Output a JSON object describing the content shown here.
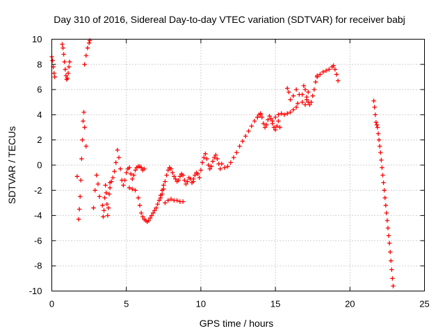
{
  "chart_data": {
    "type": "scatter",
    "title": "Day 310 of 2016, Sidereal Day-to-day VTEC variation (SDTVAR) for receiver babj",
    "xlabel": "GPS time / hours",
    "ylabel": "SDTVAR / TECUs",
    "xlim": [
      0,
      25
    ],
    "ylim": [
      -10,
      10
    ],
    "xticks": [
      0,
      5,
      10,
      15,
      20,
      25
    ],
    "yticks": [
      -10,
      -8,
      -6,
      -4,
      -2,
      0,
      2,
      4,
      6,
      8,
      10
    ],
    "grid": true,
    "marker": "+",
    "color": "#ff0000",
    "series": [
      {
        "name": "seg1",
        "x": [
          0.0,
          0.05,
          0.1,
          0.15,
          0.2
        ],
        "y": [
          8.6,
          8.3,
          7.8,
          7.3,
          7.0
        ]
      },
      {
        "name": "seg2",
        "x": [
          0.7,
          0.75,
          0.8,
          0.85,
          0.9,
          0.95,
          1.0,
          1.05,
          1.1,
          1.15,
          1.2
        ],
        "y": [
          9.6,
          9.3,
          8.8,
          8.2,
          7.6,
          7.1,
          6.8,
          6.9,
          7.3,
          7.8,
          8.2
        ]
      },
      {
        "name": "seg3",
        "x": [
          1.7,
          1.8,
          1.85,
          1.9,
          1.95,
          2.0,
          2.05,
          2.1,
          2.15,
          2.2,
          2.3
        ],
        "y": [
          -0.9,
          -4.3,
          -3.5,
          -2.5,
          -1.2,
          0.5,
          2.0,
          3.5,
          4.2,
          3.0,
          1.5
        ]
      },
      {
        "name": "seg4",
        "x": [
          2.2,
          2.3,
          2.4,
          2.5,
          2.55
        ],
        "y": [
          8.0,
          8.7,
          9.3,
          9.7,
          9.9
        ]
      },
      {
        "name": "seg5",
        "x": [
          2.8,
          2.9,
          3.0,
          3.1,
          3.2
        ],
        "y": [
          -3.4,
          -2.0,
          -0.8,
          -1.5,
          -2.5
        ]
      },
      {
        "name": "seg6",
        "x": [
          3.4,
          3.45,
          3.5,
          3.55,
          3.6,
          3.65,
          3.7,
          3.75,
          3.8,
          3.85,
          3.9
        ],
        "y": [
          -3.2,
          -4.1,
          -3.6,
          -2.6,
          -1.6,
          -2.2,
          -3.1,
          -4.0,
          -3.4,
          -2.3,
          -1.4
        ]
      },
      {
        "name": "seg7",
        "x": [
          3.9,
          4.0,
          4.1,
          4.2,
          4.3,
          4.4,
          4.5,
          4.6,
          4.7,
          4.8,
          4.9,
          5.0,
          5.1,
          5.2,
          5.3,
          5.4,
          5.5,
          5.6,
          5.7,
          5.8,
          5.9,
          6.0,
          6.1,
          6.2
        ],
        "y": [
          -1.8,
          -1.3,
          -1.0,
          -0.5,
          0.2,
          1.2,
          0.6,
          -0.3,
          -1.2,
          -1.6,
          -1.2,
          -0.6,
          -0.3,
          -0.2,
          -0.7,
          -1.1,
          -0.8,
          -0.4,
          -0.2,
          -0.1,
          -0.1,
          -0.2,
          -0.4,
          -0.3
        ]
      },
      {
        "name": "seg8",
        "x": [
          5.2,
          5.4,
          5.6,
          5.8,
          5.9,
          6.0,
          6.1,
          6.2,
          6.3,
          6.4,
          6.5,
          6.6,
          6.7,
          6.8,
          6.9,
          7.0,
          7.1,
          7.2,
          7.3,
          7.4,
          7.5
        ],
        "y": [
          -1.8,
          -1.9,
          -2.0,
          -2.6,
          -3.2,
          -3.8,
          -4.1,
          -4.3,
          -4.4,
          -4.5,
          -4.4,
          -4.2,
          -4.0,
          -3.8,
          -3.6,
          -3.4,
          -3.1,
          -2.8,
          -2.4,
          -2.0,
          -1.6
        ]
      },
      {
        "name": "seg9",
        "x": [
          7.3,
          7.4,
          7.5,
          7.6,
          7.7,
          7.8,
          7.9,
          8.0,
          8.1,
          8.2,
          8.3,
          8.4,
          8.5,
          8.6,
          8.7,
          8.8,
          8.9,
          9.0,
          9.1,
          9.2,
          9.3,
          9.4,
          9.5
        ],
        "y": [
          -2.6,
          -2.3,
          -1.9,
          -1.3,
          -0.8,
          -0.4,
          -0.2,
          -0.3,
          -0.6,
          -0.9,
          -1.1,
          -1.3,
          -1.2,
          -0.9,
          -0.7,
          -0.8,
          -1.2,
          -1.5,
          -1.3,
          -1.0,
          -1.1,
          -1.4,
          -1.3
        ]
      },
      {
        "name": "seg10",
        "x": [
          7.6,
          7.8,
          8.0,
          8.2,
          8.4,
          8.6,
          8.8
        ],
        "y": [
          -3.0,
          -2.8,
          -2.7,
          -2.8,
          -2.8,
          -2.9,
          -2.9
        ]
      },
      {
        "name": "seg11",
        "x": [
          9.5,
          9.6,
          9.7,
          9.8,
          9.9,
          10.0,
          10.1,
          10.2,
          10.3,
          10.4,
          10.5,
          10.6,
          10.7,
          10.8,
          10.9,
          11.0,
          11.1,
          11.2,
          11.3
        ],
        "y": [
          -1.1,
          -0.8,
          -0.6,
          -0.7,
          -1.0,
          -0.4,
          0.2,
          0.6,
          0.9,
          0.5,
          0.0,
          -0.3,
          -0.1,
          0.3,
          0.6,
          0.8,
          0.5,
          0.1,
          -0.3
        ]
      },
      {
        "name": "seg12",
        "x": [
          11.4,
          11.6,
          11.8,
          12.0,
          12.2,
          12.4,
          12.6,
          12.8,
          13.0,
          13.2,
          13.4,
          13.6,
          13.8,
          14.0
        ],
        "y": [
          0.1,
          -0.2,
          -0.1,
          0.2,
          0.6,
          1.0,
          1.5,
          1.9,
          2.3,
          2.7,
          3.1,
          3.5,
          3.8,
          4.0
        ]
      },
      {
        "name": "seg13",
        "x": [
          13.8,
          13.9,
          14.0,
          14.1,
          14.2,
          14.3,
          14.4,
          14.5,
          14.6,
          14.7,
          14.8,
          14.9,
          15.0,
          15.1,
          15.2,
          15.3
        ],
        "y": [
          3.8,
          4.0,
          4.1,
          3.8,
          3.3,
          3.0,
          3.2,
          3.6,
          3.9,
          3.7,
          3.3,
          3.0,
          2.8,
          3.1,
          3.5,
          3.0
        ]
      },
      {
        "name": "seg14",
        "x": [
          14.8,
          15.0,
          15.2,
          15.4,
          15.6,
          15.8,
          16.0,
          16.2,
          16.4,
          16.5
        ],
        "y": [
          3.5,
          3.8,
          4.0,
          4.1,
          4.0,
          4.1,
          4.2,
          4.4,
          4.6,
          4.9
        ]
      },
      {
        "name": "seg15",
        "x": [
          15.8,
          15.9,
          16.0,
          16.2,
          16.4,
          16.6,
          16.8,
          17.0,
          17.1,
          17.2
        ],
        "y": [
          6.1,
          5.8,
          5.2,
          5.5,
          6.0,
          5.6,
          5.0,
          4.8,
          5.2,
          5.8
        ]
      },
      {
        "name": "seg16",
        "x": [
          16.8,
          16.9,
          17.0,
          17.1,
          17.2,
          17.3,
          17.4,
          17.5,
          17.6,
          17.7,
          17.8
        ],
        "y": [
          5.6,
          6.3,
          6.0,
          5.4,
          5.0,
          4.8,
          5.0,
          5.5,
          6.0,
          6.6,
          7.0
        ]
      },
      {
        "name": "seg17",
        "x": [
          17.8,
          18.0,
          18.2,
          18.4,
          18.6,
          18.8,
          18.9,
          19.0,
          19.1,
          19.2
        ],
        "y": [
          7.1,
          7.2,
          7.4,
          7.5,
          7.6,
          7.8,
          7.9,
          7.6,
          7.2,
          6.7
        ]
      },
      {
        "name": "seg18",
        "x": [
          21.6,
          21.65,
          21.7,
          21.75,
          21.8,
          21.85,
          21.9,
          21.95,
          22.0,
          22.05,
          22.1,
          22.15,
          22.2,
          22.25,
          22.3,
          22.35,
          22.4,
          22.45,
          22.5,
          22.55,
          22.6,
          22.65,
          22.7,
          22.75,
          22.8,
          22.85,
          22.9
        ],
        "y": [
          5.1,
          4.6,
          4.0,
          3.4,
          3.2,
          3.0,
          2.5,
          2.0,
          1.5,
          1.0,
          0.4,
          -0.2,
          -0.8,
          -1.4,
          -2.0,
          -2.6,
          -3.2,
          -3.8,
          -4.4,
          -5.0,
          -5.6,
          -6.2,
          -6.9,
          -7.6,
          -8.3,
          -9.0,
          -9.6
        ]
      }
    ]
  }
}
